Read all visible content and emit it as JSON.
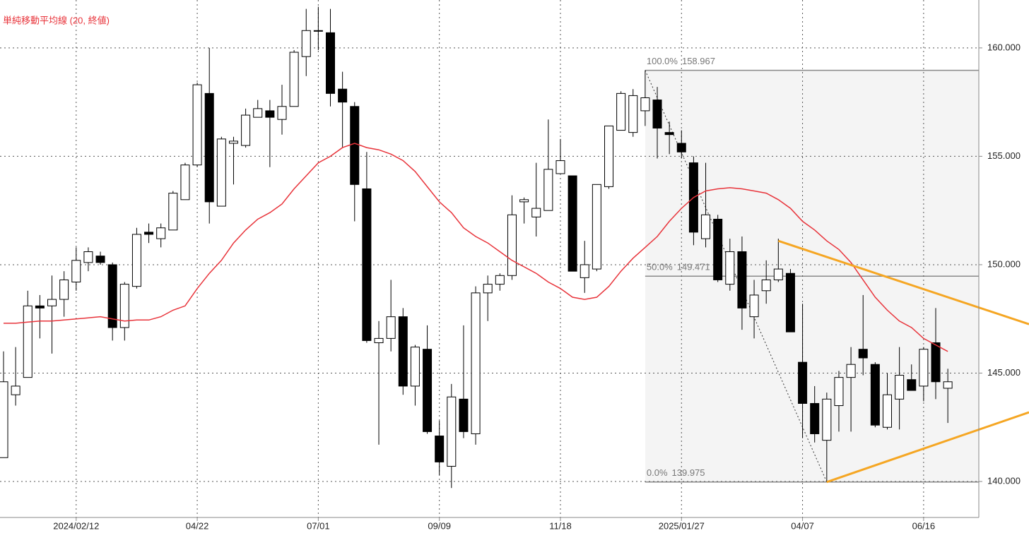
{
  "chart_data": {
    "type": "candlestick",
    "categories": [
      null,
      null,
      null,
      null,
      null,
      null,
      "2024/02/12",
      null,
      null,
      null,
      null,
      null,
      null,
      null,
      null,
      null,
      "04/22",
      null,
      null,
      null,
      null,
      null,
      null,
      null,
      null,
      null,
      "07/01",
      null,
      null,
      null,
      null,
      null,
      null,
      null,
      null,
      null,
      "09/09",
      null,
      null,
      null,
      null,
      null,
      null,
      null,
      null,
      null,
      "11/18",
      null,
      null,
      null,
      null,
      null,
      null,
      null,
      null,
      null,
      "2025/01/27",
      null,
      null,
      null,
      null,
      null,
      null,
      null,
      null,
      null,
      "04/07",
      null,
      null,
      null,
      null,
      null,
      null,
      null,
      null,
      null,
      "06/16",
      null,
      null
    ],
    "ohlc": {
      "up_color": "#ffffff",
      "down_color": "#000000",
      "open": [
        141.1,
        144.0,
        144.8,
        148.1,
        148.1,
        148.4,
        149.2,
        150.1,
        150.4,
        150.0,
        147.1,
        149.0,
        151.5,
        151.2,
        151.6,
        153.0,
        154.6,
        157.9,
        152.7,
        155.6,
        155.5,
        156.8,
        157.1,
        156.7,
        157.3,
        159.6,
        160.8,
        160.7,
        158.1,
        157.3,
        153.5,
        146.4,
        146.6,
        147.6,
        144.4,
        146.1,
        142.1,
        140.7,
        143.8,
        142.2,
        148.7,
        149.1,
        149.5,
        152.9,
        152.2,
        152.5,
        154.2,
        154.1,
        149.4,
        149.8,
        153.6,
        156.2,
        156.1,
        157.1,
        157.6,
        156.1,
        155.6,
        154.7,
        151.2,
        152.1,
        149.1,
        150.6,
        147.6,
        148.8,
        149.3,
        149.6,
        145.5,
        143.6,
        141.9,
        143.5,
        144.8,
        146.1,
        145.4,
        142.5,
        143.8,
        144.7,
        144.4,
        146.4,
        144.3
      ],
      "high": [
        146.0,
        146.2,
        148.8,
        148.6,
        149.5,
        149.7,
        150.8,
        150.8,
        150.6,
        150.1,
        149.2,
        151.7,
        151.9,
        151.9,
        153.4,
        154.7,
        158.4,
        160.0,
        155.9,
        155.9,
        157.2,
        157.6,
        157.6,
        158.3,
        159.9,
        161.8,
        161.9,
        161.8,
        158.9,
        157.5,
        155.2,
        147.4,
        149.3,
        148.0,
        146.3,
        147.2,
        142.8,
        144.5,
        147.2,
        149.0,
        149.5,
        149.6,
        153.2,
        153.1,
        154.7,
        156.7,
        155.8,
        154.1,
        151.1,
        153.7,
        156.4,
        158.0,
        158.1,
        158.967,
        158.2,
        156.6,
        156.2,
        155.0,
        154.7,
        152.3,
        151.2,
        151.3,
        149.3,
        150.2,
        151.2,
        149.8,
        148.2,
        144.4,
        144.1,
        145.1,
        146.2,
        148.6,
        145.5,
        145.0,
        146.2,
        145.4,
        146.2,
        148.0,
        145.2
      ],
      "low": [
        141.1,
        143.5,
        144.8,
        146.6,
        145.9,
        147.6,
        148.8,
        149.7,
        150.0,
        146.5,
        146.5,
        148.9,
        151.0,
        150.8,
        151.6,
        153.0,
        154.5,
        151.9,
        152.7,
        153.7,
        155.4,
        156.8,
        154.5,
        156.0,
        157.3,
        158.7,
        159.9,
        157.3,
        155.4,
        152.0,
        146.4,
        141.7,
        146.0,
        144.0,
        143.5,
        142.2,
        140.3,
        139.7,
        142.0,
        141.7,
        147.4,
        148.8,
        149.3,
        151.9,
        151.3,
        152.5,
        154.2,
        149.7,
        148.7,
        149.7,
        153.5,
        156.2,
        155.9,
        156.4,
        154.9,
        155.1,
        154.9,
        150.9,
        150.8,
        149.2,
        148.8,
        147.0,
        146.6,
        148.2,
        149.2,
        146.9,
        142.0,
        141.8,
        139.975,
        142.3,
        142.3,
        144.9,
        142.5,
        142.4,
        142.4,
        144.2,
        143.7,
        143.8,
        142.7
      ],
      "close": [
        144.6,
        144.4,
        148.1,
        148.0,
        148.4,
        149.3,
        150.2,
        150.6,
        150.1,
        147.1,
        149.1,
        151.4,
        151.4,
        151.7,
        153.3,
        154.6,
        158.3,
        152.9,
        155.8,
        155.7,
        156.9,
        157.2,
        156.8,
        157.3,
        159.8,
        160.8,
        160.8,
        157.9,
        157.5,
        153.7,
        146.5,
        146.6,
        147.6,
        144.4,
        146.2,
        142.3,
        140.9,
        143.9,
        142.3,
        148.7,
        149.1,
        149.5,
        152.3,
        153.0,
        152.6,
        154.4,
        154.8,
        149.7,
        150.0,
        153.7,
        156.4,
        157.9,
        157.8,
        157.7,
        156.3,
        156.0,
        155.2,
        151.5,
        152.3,
        149.3,
        150.6,
        148.0,
        148.6,
        149.3,
        149.8,
        146.9,
        143.6,
        142.2,
        143.8,
        144.8,
        145.4,
        145.7,
        142.6,
        144.0,
        144.9,
        144.2,
        146.1,
        144.6,
        144.6
      ]
    },
    "moving_average": {
      "name": "単純移動平均線 (20, 終値)",
      "color": "#e8333a",
      "values": [
        147.3,
        147.3,
        147.35,
        147.4,
        147.4,
        147.45,
        147.5,
        147.55,
        147.6,
        147.5,
        147.4,
        147.45,
        147.45,
        147.6,
        147.9,
        148.1,
        148.9,
        149.6,
        150.2,
        151.0,
        151.6,
        152.1,
        152.4,
        152.8,
        153.5,
        154.1,
        154.7,
        155.0,
        155.4,
        155.6,
        155.4,
        155.3,
        155.1,
        154.8,
        154.3,
        153.6,
        152.9,
        152.4,
        151.7,
        151.3,
        151.0,
        150.6,
        150.2,
        149.9,
        149.6,
        149.2,
        148.9,
        148.5,
        148.4,
        148.5,
        149.0,
        149.7,
        150.3,
        150.8,
        151.3,
        152.0,
        152.6,
        153.1,
        153.4,
        153.5,
        153.55,
        153.5,
        153.4,
        153.3,
        153.0,
        152.6,
        152.0,
        151.6,
        151.1,
        150.7,
        150.1,
        149.3,
        148.5,
        147.9,
        147.4,
        147.1,
        146.6,
        146.3,
        146.0
      ]
    },
    "fibonacci": {
      "start": 53,
      "end": 68,
      "levels": [
        {
          "label": "100.0%",
          "value": 158.967
        },
        {
          "label": "50.0%",
          "value": 149.471
        },
        {
          "label": "0.0%",
          "value": 139.975
        }
      ]
    },
    "trendlines": [
      {
        "color": "#f5a623",
        "x": [
          64,
          78
        ],
        "values": [
          151.1,
          148.5
        ]
      },
      {
        "color": "#f5a623",
        "x": [
          68,
          78
        ],
        "values": [
          139.975,
          141.9
        ]
      }
    ],
    "ylim": [
      138.34,
      162.21
    ],
    "yticks": [
      {
        "value": 140,
        "label": "140.000"
      },
      {
        "value": 145,
        "label": "145.000"
      },
      {
        "value": 150,
        "label": "150.000"
      },
      {
        "value": 155,
        "label": "155.000"
      },
      {
        "value": 160,
        "label": "160.000"
      }
    ],
    "grid": true
  }
}
